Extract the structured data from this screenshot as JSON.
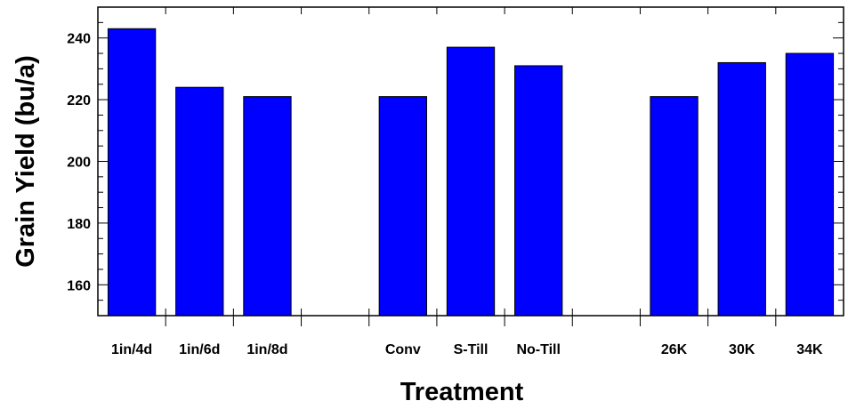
{
  "chart_data": {
    "type": "bar",
    "xlabel": "Treatment",
    "ylabel": "Grain Yield (bu/a)",
    "ylim": [
      150,
      250
    ],
    "yticks": [
      160,
      180,
      200,
      220,
      240
    ],
    "categories": [
      "1in/4d",
      "1in/6d",
      "1in/8d",
      "",
      "Conv",
      "S-Till",
      "No-Till",
      "",
      "26K",
      "30K",
      "34K"
    ],
    "values": [
      243,
      224,
      221,
      null,
      221,
      237,
      231,
      null,
      221,
      232,
      235
    ],
    "bar_color": "#0000FF",
    "bar_edge_color": "#000000",
    "grid": false
  }
}
